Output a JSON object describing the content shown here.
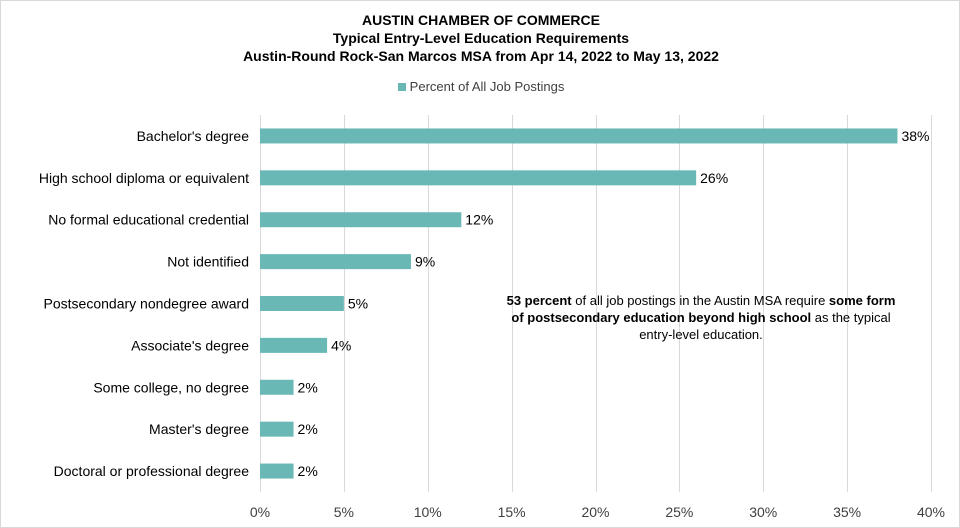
{
  "chart_data": {
    "type": "bar",
    "orientation": "horizontal",
    "title": "AUSTIN CHAMBER OF COMMERCE",
    "subtitle": "Typical Entry-Level Education Requirements",
    "subtitle2": "Austin-Round Rock-San Marcos MSA from Apr 14, 2022 to May 13, 2022",
    "categories": [
      "Bachelor's degree",
      "High school diploma or equivalent",
      "No formal educational credential",
      "Not identified",
      "Postsecondary nondegree award",
      "Associate's degree",
      "Some college, no degree",
      "Master's degree",
      "Doctoral or professional degree"
    ],
    "series": [
      {
        "name": "Percent of All Job Postings",
        "values": [
          38,
          26,
          12,
          9,
          5,
          4,
          2,
          2,
          2
        ],
        "labels": [
          "38%",
          "26%",
          "12%",
          "9%",
          "5%",
          "4%",
          "2%",
          "2%",
          "2%"
        ]
      }
    ],
    "xlim": [
      0,
      40
    ],
    "xticks": [
      0,
      5,
      10,
      15,
      20,
      25,
      30,
      35,
      40
    ],
    "xtick_labels": [
      "0%",
      "5%",
      "10%",
      "15%",
      "20%",
      "25%",
      "30%",
      "35%",
      "40%"
    ],
    "grid": "vertical",
    "legend": "top",
    "bar_color": "#6ab8b6",
    "annotation": {
      "segments": [
        {
          "text": "53 percent",
          "bold": true
        },
        {
          "text": " of all job postings in the Austin MSA require ",
          "bold": false
        },
        {
          "text": "some form of postsecondary education beyond high school",
          "bold": true
        },
        {
          "text": " as the typical entry-level education.",
          "bold": false
        }
      ]
    }
  }
}
